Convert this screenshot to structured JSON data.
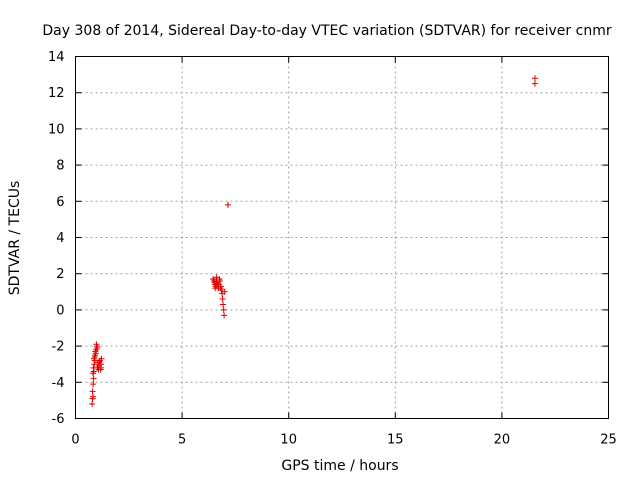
{
  "chart_data": {
    "type": "scatter",
    "title": "Day 308 of 2014, Sidereal Day-to-day VTEC variation (SDTVAR) for receiver cnmr",
    "xlabel": "GPS time / hours",
    "ylabel": "SDTVAR / TECUs",
    "xlim": [
      0,
      25
    ],
    "ylim": [
      -6,
      14
    ],
    "xticks": [
      0,
      5,
      10,
      15,
      20,
      25
    ],
    "yticks": [
      -6,
      -4,
      -2,
      0,
      2,
      4,
      6,
      8,
      10,
      12,
      14
    ],
    "grid": true,
    "marker": "+",
    "color": "#e00000",
    "series": [
      {
        "x": [
          0.78,
          0.8,
          0.82,
          0.8,
          0.83,
          0.85,
          0.82,
          0.86,
          0.84,
          0.88,
          0.9,
          0.87,
          0.9,
          0.92,
          0.95,
          0.93,
          0.97,
          1.0,
          0.98,
          1.02,
          1.05,
          1.03,
          1.08,
          1.1,
          1.12,
          1.15,
          1.18,
          1.2,
          1.22,
          1.19,
          6.45,
          6.5,
          6.52,
          6.55,
          6.58,
          6.6,
          6.62,
          6.65,
          6.68,
          6.7,
          6.72,
          6.75,
          6.78,
          6.8,
          6.82,
          6.85,
          6.88,
          6.9,
          6.92,
          6.95,
          6.97,
          7.0,
          6.55,
          6.6,
          6.63,
          7.15,
          21.55,
          21.55
        ],
        "y": [
          -5.2,
          -4.9,
          -4.8,
          -4.5,
          -4.1,
          -3.8,
          -3.5,
          -3.4,
          -3.2,
          -3.0,
          -2.8,
          -2.7,
          -2.6,
          -2.5,
          -2.4,
          -2.3,
          -2.2,
          -2.0,
          -1.9,
          -2.1,
          -2.9,
          -3.2,
          -3.3,
          -3.1,
          -2.9,
          -2.8,
          -3.3,
          -3.2,
          -2.7,
          -3.0,
          1.7,
          1.6,
          1.5,
          1.4,
          1.3,
          1.6,
          1.8,
          1.5,
          1.3,
          1.2,
          1.4,
          1.7,
          1.6,
          1.2,
          1.3,
          1.1,
          0.9,
          0.6,
          0.3,
          0.0,
          -0.3,
          1.0,
          1.2,
          1.4,
          1.6,
          5.8,
          12.5,
          12.8
        ]
      }
    ]
  }
}
